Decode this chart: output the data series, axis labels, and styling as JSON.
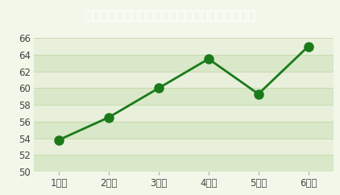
{
  "title": "児童の偏差値の推移（リリーベール小学校調べ）",
  "x_labels": [
    "1学年",
    "2学年",
    "3学年",
    "4学年",
    "5学年",
    "6学年"
  ],
  "y_values": [
    53.8,
    56.5,
    60.0,
    63.5,
    59.3,
    65.0
  ],
  "y_min": 50,
  "y_max": 66,
  "y_ticks": [
    50,
    52,
    54,
    56,
    58,
    60,
    62,
    64,
    66
  ],
  "line_color": "#1a7a1a",
  "marker_color": "#1a7a1a",
  "title_bg_color": "#2e8b2e",
  "title_text_color": "#ffffff",
  "plot_bg_color": "#f2f7ea",
  "band_color_light": "#e8f0dc",
  "band_color_dark": "#d8e8c8",
  "outer_bg_color": "#f2f7ea",
  "tick_label_color": "#444444",
  "title_fontsize": 11.5,
  "tick_fontsize": 8.5,
  "marker_size": 8,
  "line_width": 2.0
}
